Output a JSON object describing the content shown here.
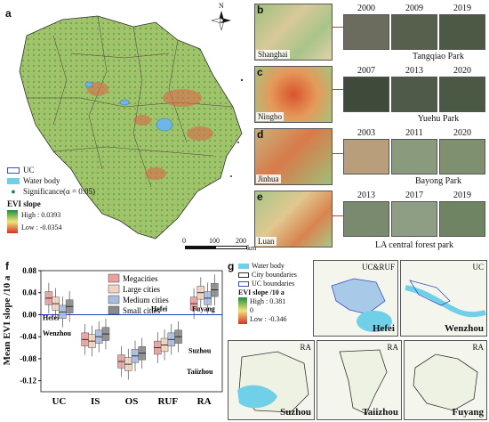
{
  "panels": {
    "a": {
      "label": "a",
      "north": "N",
      "legend": {
        "uc": "UC",
        "water": "Water body",
        "sig": "Significance(α = 0.05)",
        "evi_title": "EVI slope",
        "high": "High : 0.0393",
        "low": "Low : -0.0354"
      },
      "scale": {
        "t0": "0",
        "t1": "100",
        "t2": "200",
        "unit": "km"
      }
    },
    "rows": [
      {
        "label": "b",
        "city": "Shanghai",
        "years": [
          "2000",
          "2009",
          "2019"
        ],
        "park": "Tangqiao Park"
      },
      {
        "label": "c",
        "city": "Ningbo",
        "years": [
          "2007",
          "2013",
          "2020"
        ],
        "park": "Yuehu Park"
      },
      {
        "label": "d",
        "city": "Jinhua",
        "years": [
          "2003",
          "2011",
          "2020"
        ],
        "park": "Bayong Park"
      },
      {
        "label": "e",
        "city": "Luan",
        "years": [
          "2013",
          "2017",
          "2019"
        ],
        "park": "LA central forest park"
      }
    ],
    "f": {
      "label": "f",
      "ylabel": "Mean EVI slope /10 a",
      "categories": [
        "UC",
        "IS",
        "OS",
        "RUF",
        "RA"
      ],
      "yticks": [
        "0.08",
        "0.04",
        "0.00",
        "-0.04",
        "-0.08",
        "-0.12"
      ],
      "legend": [
        "Megacities",
        "Large cities",
        "Medium cities",
        "Small cities"
      ],
      "annotations": [
        "Hefei",
        "Wenzhou",
        "Hefei",
        "Fuyang",
        "Suzhou",
        "Taiizhou"
      ]
    },
    "g": {
      "label": "g",
      "legend": {
        "water": "Water body",
        "city": "City boundaries",
        "uc": "UC boundaries",
        "evi_title": "EVI slope /10 a",
        "high": "High : 0.381",
        "zero": "0",
        "low": "Low : -0.346"
      },
      "maps": [
        {
          "tag": "UC&RUF",
          "name": "Hefei"
        },
        {
          "tag": "UC",
          "name": "Wenzhou"
        },
        {
          "tag": "RA",
          "name": "Suzhou"
        },
        {
          "tag": "RA",
          "name": "Taiizhou"
        },
        {
          "tag": "RA",
          "name": "Fuyang"
        }
      ]
    }
  },
  "chart_data": {
    "type": "box",
    "title": "",
    "xlabel": "",
    "ylabel": "Mean EVI slope /10 a",
    "ylim": [
      -0.14,
      0.08
    ],
    "categories": [
      "UC",
      "IS",
      "OS",
      "RUF",
      "RA"
    ],
    "series": [
      {
        "name": "Megacities",
        "medians": [
          0.03,
          -0.045,
          -0.085,
          -0.06,
          0.02
        ]
      },
      {
        "name": "Large cities",
        "medians": [
          0.02,
          -0.048,
          -0.09,
          -0.055,
          0.04
        ]
      },
      {
        "name": "Medium cities",
        "medians": [
          0.005,
          -0.04,
          -0.075,
          -0.045,
          0.03
        ]
      },
      {
        "name": "Small cities",
        "medians": [
          0.015,
          -0.035,
          -0.07,
          -0.04,
          0.045
        ]
      }
    ],
    "colors": {
      "Megacities": "#e8a0a0",
      "Large cities": "#f2d2c0",
      "Medium cities": "#a9bde0",
      "Small cities": "#8a8a8a"
    },
    "reference_line": 0.0
  }
}
